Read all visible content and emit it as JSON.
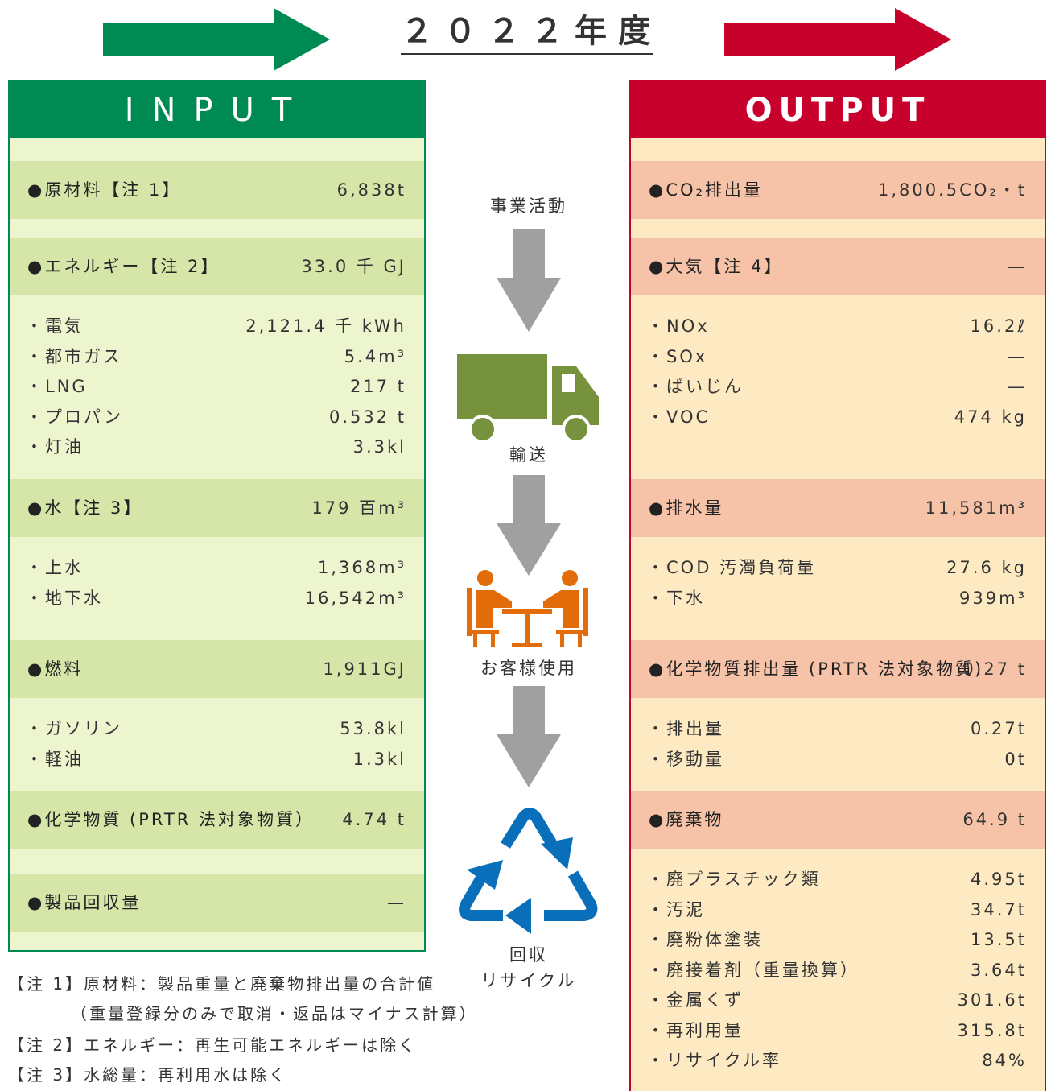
{
  "title": "２０２２年度",
  "input": {
    "header": "INPUT",
    "sections": [
      {
        "heading": "●原材料【注 1】",
        "value": "6,838t",
        "items": []
      },
      {
        "heading": "●エネルギー【注 2】",
        "value": "33.0 千 GJ",
        "items": [
          {
            "label": "・電気",
            "value": "2,121.4 千 kWh"
          },
          {
            "label": "・都市ガス",
            "value": "5.4m³"
          },
          {
            "label": "・LNG",
            "value": "217 t"
          },
          {
            "label": "・プロパン",
            "value": "0.532 t"
          },
          {
            "label": "・灯油",
            "value": "3.3kl"
          }
        ]
      },
      {
        "heading": "●水【注 3】",
        "value": "179 百m³",
        "items": [
          {
            "label": "・上水",
            "value": "1,368m³"
          },
          {
            "label": "・地下水",
            "value": "16,542m³"
          }
        ]
      },
      {
        "heading": "●燃料",
        "value": "1,911GJ",
        "items": [
          {
            "label": "・ガソリン",
            "value": "53.8kl"
          },
          {
            "label": "・軽油",
            "value": "1.3kl"
          }
        ]
      },
      {
        "heading": "●化学物質 (PRTR 法対象物質）",
        "value": "4.74 t",
        "items": []
      },
      {
        "heading": "●製品回収量",
        "value": "—",
        "items": []
      }
    ]
  },
  "output": {
    "header": "OUTPUT",
    "sections": [
      {
        "heading": "●CO₂排出量",
        "value": "1,800.5CO₂・t",
        "items": []
      },
      {
        "heading": "●大気【注 4】",
        "value": "—",
        "items": [
          {
            "label": "・NOx",
            "value": "16.2ℓ"
          },
          {
            "label": "・SOx",
            "value": "—"
          },
          {
            "label": "・ばいじん",
            "value": "—"
          },
          {
            "label": "・VOC",
            "value": "474 kg"
          }
        ]
      },
      {
        "heading": "●排水量",
        "value": "11,581m³",
        "items": [
          {
            "label": "・COD 汚濁負荷量",
            "value": "27.6 kg"
          },
          {
            "label": "・下水",
            "value": "939m³"
          }
        ]
      },
      {
        "heading": "●化学物質排出量 (PRTR 法対象物質)",
        "value": "0.27 t",
        "items": [
          {
            "label": "・排出量",
            "value": "0.27t"
          },
          {
            "label": "・移動量",
            "value": "0t"
          }
        ]
      },
      {
        "heading": "●廃棄物",
        "value": "64.9 t",
        "items": [
          {
            "label": "・廃プラスチック類",
            "value": "4.95t"
          },
          {
            "label": "・汚泥",
            "value": "34.7t"
          },
          {
            "label": "・廃粉体塗装",
            "value": "13.5t"
          },
          {
            "label": "・廃接着剤（重量換算）",
            "value": "3.64t"
          },
          {
            "label": "・金属くず",
            "value": "301.6t"
          },
          {
            "label": "・再利用量",
            "value": "315.8t"
          },
          {
            "label": "・リサイクル率",
            "value": "84%"
          }
        ]
      }
    ]
  },
  "flow": [
    "事業活動",
    "輸送",
    "お客様使用",
    "回収",
    "リサイクル"
  ],
  "notes": [
    "【注 1】原材料：製品重量と廃棄物排出量の合計値",
    "（重量登録分のみで取消・返品はマイナス計算）",
    "【注 2】エネルギー：再生可能エネルギーは除く",
    "【注 3】水総量：再利用水は除く"
  ]
}
